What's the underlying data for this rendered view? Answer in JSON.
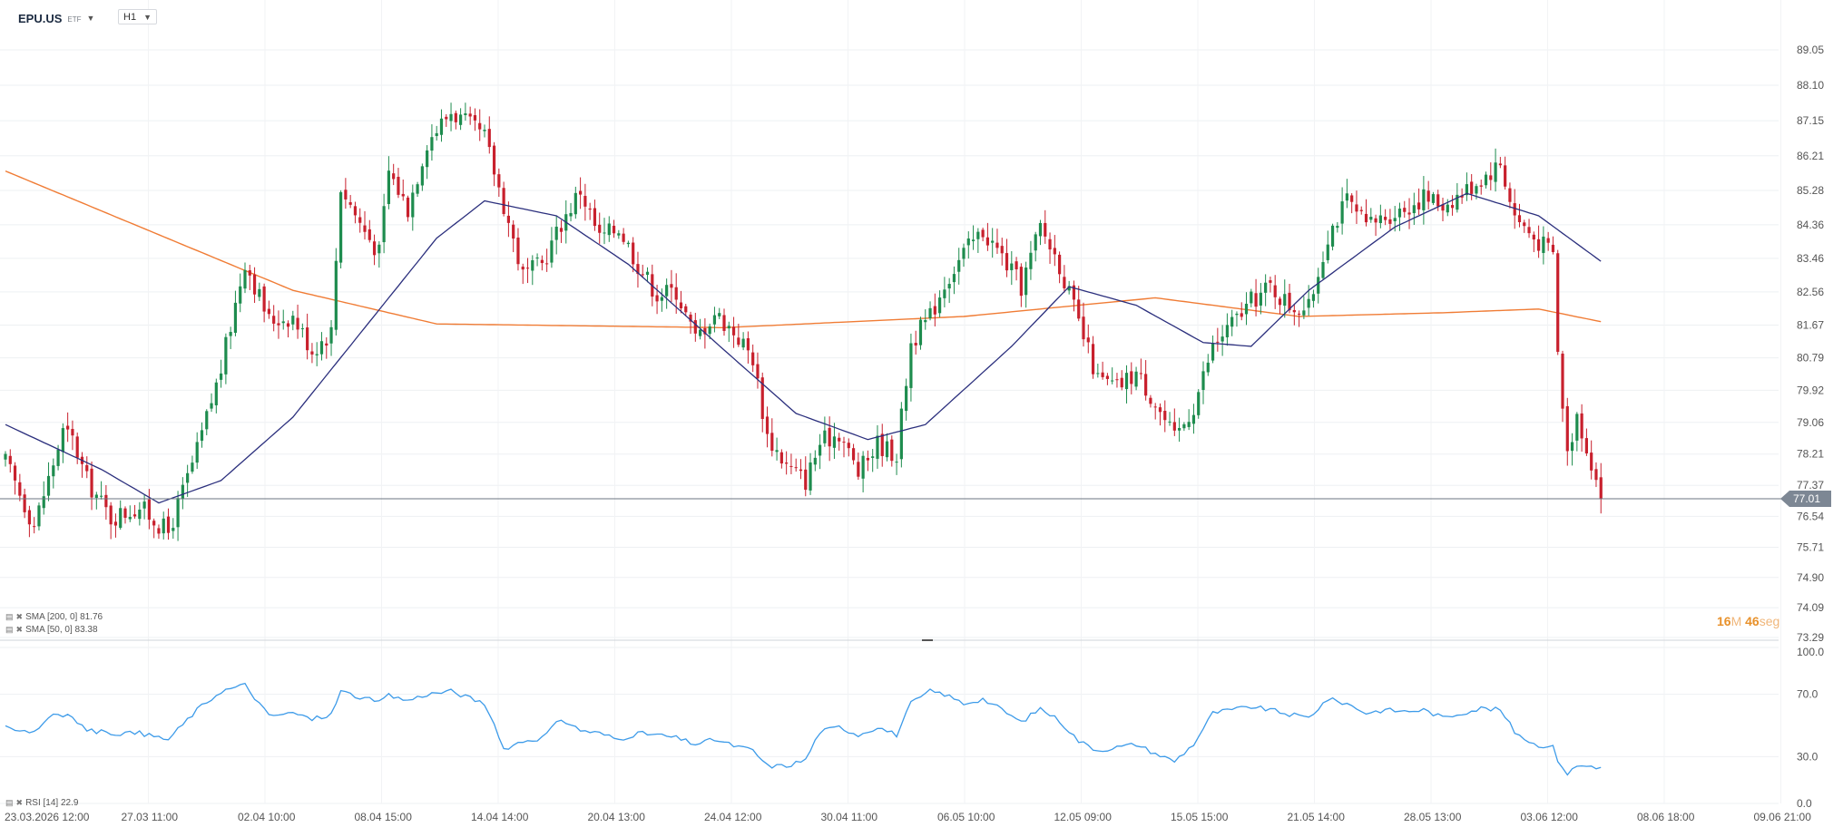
{
  "header": {
    "symbol": "EPU.US",
    "type": "ETF",
    "timeframe": "H1"
  },
  "timer": {
    "minutes": "16",
    "minutes_unit": "M",
    "seconds": "46",
    "seconds_unit": "seg"
  },
  "indicators": {
    "sma200": "SMA [200, 0] 81.76",
    "sma50": "SMA [50, 0] 83.38",
    "rsi": "RSI [14] 22.9"
  },
  "colors": {
    "bull": "#1e8c4e",
    "bear": "#c8202d",
    "sma200": "#f07c35",
    "sma50": "#2b2f7d",
    "rsi": "#3d9be9",
    "price_tag": "#7d8794"
  },
  "chart_data": [
    {
      "type": "candlestick",
      "timeframe": "H1",
      "ylim": [
        73.29,
        89.05
      ],
      "y_ticks": [
        "89.05",
        "88.10",
        "87.15",
        "86.21",
        "85.28",
        "84.36",
        "83.46",
        "82.56",
        "81.67",
        "80.79",
        "79.92",
        "79.06",
        "78.21",
        "77.37",
        "76.54",
        "75.71",
        "74.90",
        "74.09",
        "73.29"
      ],
      "x_labels": [
        "23.03.2026 12:00",
        "27.03 11:00",
        "02.04 10:00",
        "08.04 15:00",
        "14.04 14:00",
        "20.04 13:00",
        "24.04 12:00",
        "30.04 11:00",
        "06.05 10:00",
        "12.05 09:00",
        "15.05 15:00",
        "21.05 14:00",
        "28.05 13:00",
        "03.06 12:00",
        "08.06 18:00",
        "09.06 21:00"
      ],
      "last_price": "77.01",
      "anchors": [
        [
          0,
          78.0
        ],
        [
          6,
          76.3
        ],
        [
          12,
          78.8
        ],
        [
          14,
          78.6
        ],
        [
          17,
          77.5
        ],
        [
          22,
          76.5
        ],
        [
          28,
          76.8
        ],
        [
          34,
          76.1
        ],
        [
          40,
          78.3
        ],
        [
          45,
          80.5
        ],
        [
          50,
          83.4
        ],
        [
          55,
          81.8
        ],
        [
          60,
          81.9
        ],
        [
          64,
          81.0
        ],
        [
          68,
          81.5
        ],
        [
          70,
          85.4
        ],
        [
          74,
          84.4
        ],
        [
          78,
          83.6
        ],
        [
          80,
          85.8
        ],
        [
          84,
          84.8
        ],
        [
          88,
          86.6
        ],
        [
          93,
          87.4
        ],
        [
          100,
          86.7
        ],
        [
          104,
          84.9
        ],
        [
          108,
          83.0
        ],
        [
          112,
          83.3
        ],
        [
          116,
          84.4
        ],
        [
          120,
          85.3
        ],
        [
          124,
          84.0
        ],
        [
          128,
          84.3
        ],
        [
          132,
          83.3
        ],
        [
          136,
          82.5
        ],
        [
          140,
          82.6
        ],
        [
          144,
          81.3
        ],
        [
          148,
          82.0
        ],
        [
          152,
          81.5
        ],
        [
          156,
          80.8
        ],
        [
          159,
          78.7
        ],
        [
          163,
          77.9
        ],
        [
          167,
          77.5
        ],
        [
          170,
          78.5
        ],
        [
          174,
          78.8
        ],
        [
          178,
          77.7
        ],
        [
          182,
          78.5
        ],
        [
          186,
          78.2
        ],
        [
          189,
          81.2
        ],
        [
          193,
          81.9
        ],
        [
          196,
          82.8
        ],
        [
          200,
          83.6
        ],
        [
          204,
          84.2
        ],
        [
          208,
          83.5
        ],
        [
          212,
          82.7
        ],
        [
          216,
          84.3
        ],
        [
          220,
          83.3
        ],
        [
          224,
          81.7
        ],
        [
          228,
          80.2
        ],
        [
          232,
          80.0
        ],
        [
          236,
          80.4
        ],
        [
          240,
          79.6
        ],
        [
          244,
          78.6
        ],
        [
          248,
          79.5
        ],
        [
          252,
          81.1
        ],
        [
          256,
          81.7
        ],
        [
          260,
          82.3
        ],
        [
          264,
          82.7
        ],
        [
          268,
          82.2
        ],
        [
          272,
          82.1
        ],
        [
          276,
          84.1
        ],
        [
          280,
          85.0
        ],
        [
          284,
          84.3
        ],
        [
          288,
          84.6
        ],
        [
          292,
          84.8
        ],
        [
          296,
          85.1
        ],
        [
          300,
          84.9
        ],
        [
          304,
          85.2
        ],
        [
          308,
          85.6
        ],
        [
          312,
          86.0
        ],
        [
          315,
          84.6
        ],
        [
          319,
          84.0
        ],
        [
          323,
          83.6
        ],
        [
          324,
          80.9
        ],
        [
          326,
          78.2
        ],
        [
          328,
          79.3
        ],
        [
          331,
          78.0
        ],
        [
          333,
          77.1
        ]
      ],
      "sma200": [
        [
          0,
          85.8
        ],
        [
          60,
          82.6
        ],
        [
          90,
          81.7
        ],
        [
          150,
          81.6
        ],
        [
          200,
          81.9
        ],
        [
          240,
          82.4
        ],
        [
          270,
          81.9
        ],
        [
          300,
          82.0
        ],
        [
          320,
          82.1
        ],
        [
          333,
          81.76
        ]
      ],
      "sma50": [
        [
          0,
          79.0
        ],
        [
          20,
          77.8
        ],
        [
          32,
          76.9
        ],
        [
          45,
          77.5
        ],
        [
          60,
          79.2
        ],
        [
          90,
          84.0
        ],
        [
          100,
          85.0
        ],
        [
          115,
          84.6
        ],
        [
          130,
          83.3
        ],
        [
          150,
          81.0
        ],
        [
          165,
          79.3
        ],
        [
          180,
          78.6
        ],
        [
          192,
          79.0
        ],
        [
          210,
          81.1
        ],
        [
          222,
          82.7
        ],
        [
          236,
          82.2
        ],
        [
          250,
          81.2
        ],
        [
          260,
          81.1
        ],
        [
          272,
          82.6
        ],
        [
          290,
          84.3
        ],
        [
          305,
          85.2
        ],
        [
          320,
          84.6
        ],
        [
          333,
          83.38
        ]
      ]
    },
    {
      "type": "line",
      "name": "RSI [14]",
      "ylim": [
        0.0,
        100.0
      ],
      "y_ticks": [
        "100.0",
        "70.0",
        "30.0",
        "0.0"
      ],
      "anchors": [
        [
          0,
          49
        ],
        [
          6,
          46
        ],
        [
          10,
          58
        ],
        [
          14,
          55
        ],
        [
          17,
          47
        ],
        [
          22,
          45
        ],
        [
          28,
          45
        ],
        [
          34,
          41
        ],
        [
          40,
          60
        ],
        [
          45,
          72
        ],
        [
          50,
          76
        ],
        [
          55,
          56
        ],
        [
          60,
          58
        ],
        [
          64,
          54
        ],
        [
          68,
          57
        ],
        [
          70,
          72
        ],
        [
          74,
          68
        ],
        [
          78,
          65
        ],
        [
          80,
          69
        ],
        [
          84,
          66
        ],
        [
          88,
          70
        ],
        [
          93,
          72
        ],
        [
          100,
          64
        ],
        [
          104,
          35
        ],
        [
          108,
          40
        ],
        [
          112,
          42
        ],
        [
          116,
          54
        ],
        [
          120,
          47
        ],
        [
          124,
          45
        ],
        [
          128,
          41
        ],
        [
          132,
          45
        ],
        [
          136,
          44
        ],
        [
          140,
          42
        ],
        [
          144,
          38
        ],
        [
          148,
          41
        ],
        [
          152,
          37
        ],
        [
          156,
          34
        ],
        [
          159,
          24
        ],
        [
          163,
          24
        ],
        [
          167,
          28
        ],
        [
          170,
          46
        ],
        [
          174,
          49
        ],
        [
          178,
          44
        ],
        [
          182,
          49
        ],
        [
          186,
          44
        ],
        [
          189,
          64
        ],
        [
          193,
          72
        ],
        [
          196,
          70
        ],
        [
          200,
          64
        ],
        [
          204,
          67
        ],
        [
          208,
          60
        ],
        [
          212,
          52
        ],
        [
          216,
          61
        ],
        [
          220,
          53
        ],
        [
          224,
          40
        ],
        [
          228,
          34
        ],
        [
          232,
          36
        ],
        [
          236,
          38
        ],
        [
          240,
          32
        ],
        [
          244,
          27
        ],
        [
          248,
          38
        ],
        [
          252,
          58
        ],
        [
          256,
          60
        ],
        [
          260,
          62
        ],
        [
          264,
          60
        ],
        [
          268,
          57
        ],
        [
          272,
          55
        ],
        [
          276,
          67
        ],
        [
          280,
          64
        ],
        [
          284,
          58
        ],
        [
          288,
          60
        ],
        [
          292,
          59
        ],
        [
          296,
          60
        ],
        [
          300,
          55
        ],
        [
          304,
          58
        ],
        [
          308,
          61
        ],
        [
          312,
          60
        ],
        [
          315,
          46
        ],
        [
          319,
          38
        ],
        [
          323,
          36
        ],
        [
          324,
          28
        ],
        [
          326,
          19
        ],
        [
          328,
          24
        ],
        [
          331,
          24
        ],
        [
          333,
          23
        ]
      ]
    }
  ]
}
